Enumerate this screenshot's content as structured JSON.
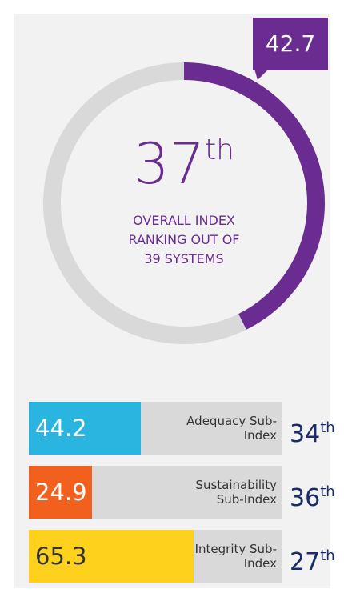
{
  "chart_data": [
    {
      "type": "donut",
      "value": 42.7,
      "ylim": [
        0,
        100
      ],
      "color": "#6a2c91",
      "track_color": "#d9d9d9",
      "rank": 37,
      "rank_suffix": "th",
      "label_lines": [
        "OVERALL INDEX",
        "RANKING OUT OF",
        "39 SYSTEMS"
      ]
    },
    {
      "type": "bar",
      "ylim": [
        0,
        100
      ],
      "track_color": "#d9d9d9",
      "categories": [
        "Adequacy Sub-Index",
        "Sustainability Sub-Index",
        "Integrity Sub-Index"
      ],
      "values": [
        44.2,
        24.9,
        65.3
      ],
      "colors": [
        "#29b5e0",
        "#f2601d",
        "#fdd11c"
      ],
      "value_text_colors": [
        "#ffffff",
        "#ffffff",
        "#333333"
      ],
      "ranks": [
        34,
        36,
        27
      ],
      "rank_suffix": "th"
    }
  ]
}
